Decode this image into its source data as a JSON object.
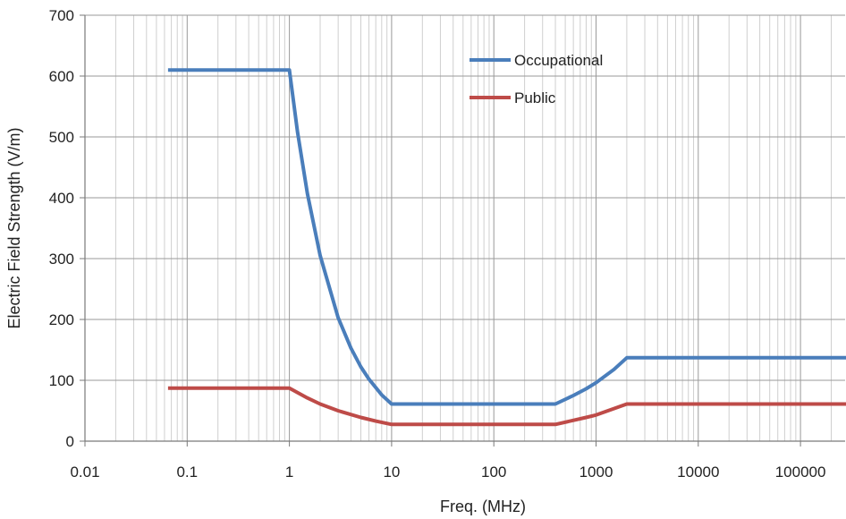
{
  "chart_data": {
    "type": "line",
    "title": "",
    "xlabel": "Freq. (MHz)",
    "ylabel": "Electric Field Strength (V/m)",
    "x_scale": "log",
    "xlim": [
      0.01,
      300000
    ],
    "ylim": [
      0,
      700
    ],
    "x_ticks": [
      "0.01",
      "0.1",
      "1",
      "10",
      "100",
      "1000",
      "10000",
      "100000"
    ],
    "y_ticks": [
      "0",
      "100",
      "200",
      "300",
      "400",
      "500",
      "600",
      "700"
    ],
    "grid": true,
    "legend_position": "top-right",
    "series": [
      {
        "name": "Occupational",
        "color": "#4a7ebb",
        "points": [
          [
            0.065,
            610
          ],
          [
            1,
            610
          ],
          [
            1.2,
            508
          ],
          [
            1.5,
            407
          ],
          [
            2,
            305
          ],
          [
            3,
            203
          ],
          [
            4,
            153
          ],
          [
            5,
            122
          ],
          [
            6,
            102
          ],
          [
            8,
            76
          ],
          [
            10,
            61
          ],
          [
            400,
            61
          ],
          [
            600,
            75
          ],
          [
            800,
            86
          ],
          [
            1000,
            96
          ],
          [
            1500,
            118
          ],
          [
            2000,
            137
          ],
          [
            300000,
            137
          ]
        ]
      },
      {
        "name": "Public",
        "color": "#be4b48",
        "points": [
          [
            0.065,
            87
          ],
          [
            1,
            87
          ],
          [
            1.5,
            71
          ],
          [
            2,
            61
          ],
          [
            3,
            50
          ],
          [
            5,
            39
          ],
          [
            7,
            33
          ],
          [
            10,
            27.5
          ],
          [
            400,
            27.5
          ],
          [
            800,
            39
          ],
          [
            1000,
            43
          ],
          [
            2000,
            61
          ],
          [
            300000,
            61
          ]
        ]
      }
    ]
  }
}
